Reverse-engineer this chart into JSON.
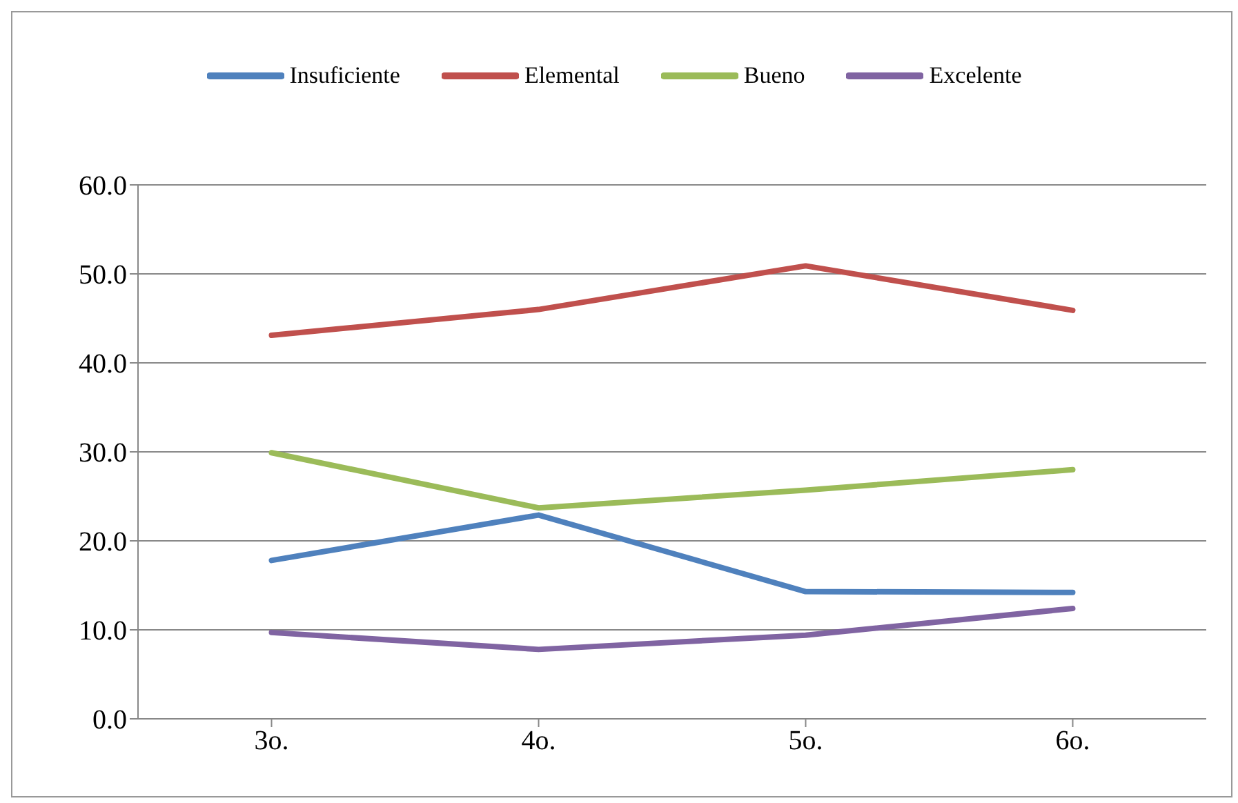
{
  "chart_data": {
    "type": "line",
    "categories": [
      "3o.",
      "4o.",
      "5o.",
      "6o."
    ],
    "series": [
      {
        "name": "Insuficiente",
        "color": "#4f81bd",
        "values": [
          17.8,
          22.9,
          14.3,
          14.2
        ]
      },
      {
        "name": "Elemental",
        "color": "#c0504d",
        "values": [
          43.1,
          46.0,
          50.9,
          45.9
        ]
      },
      {
        "name": "Bueno",
        "color": "#9bbb59",
        "values": [
          29.9,
          23.7,
          25.7,
          28.0
        ]
      },
      {
        "name": "Excelente",
        "color": "#8064a2",
        "values": [
          9.7,
          7.8,
          9.4,
          12.4
        ]
      }
    ],
    "ylim": [
      0,
      60
    ],
    "yticks": [
      {
        "value": 0,
        "label": "0.0"
      },
      {
        "value": 10,
        "label": "10.0"
      },
      {
        "value": 20,
        "label": "20.0"
      },
      {
        "value": 30,
        "label": "30.0"
      },
      {
        "value": 40,
        "label": "40.0"
      },
      {
        "value": 50,
        "label": "50.0"
      },
      {
        "value": 60,
        "label": "60.0"
      }
    ],
    "grid": "y",
    "legend": "top",
    "marker": "none",
    "line_style": "solid"
  }
}
